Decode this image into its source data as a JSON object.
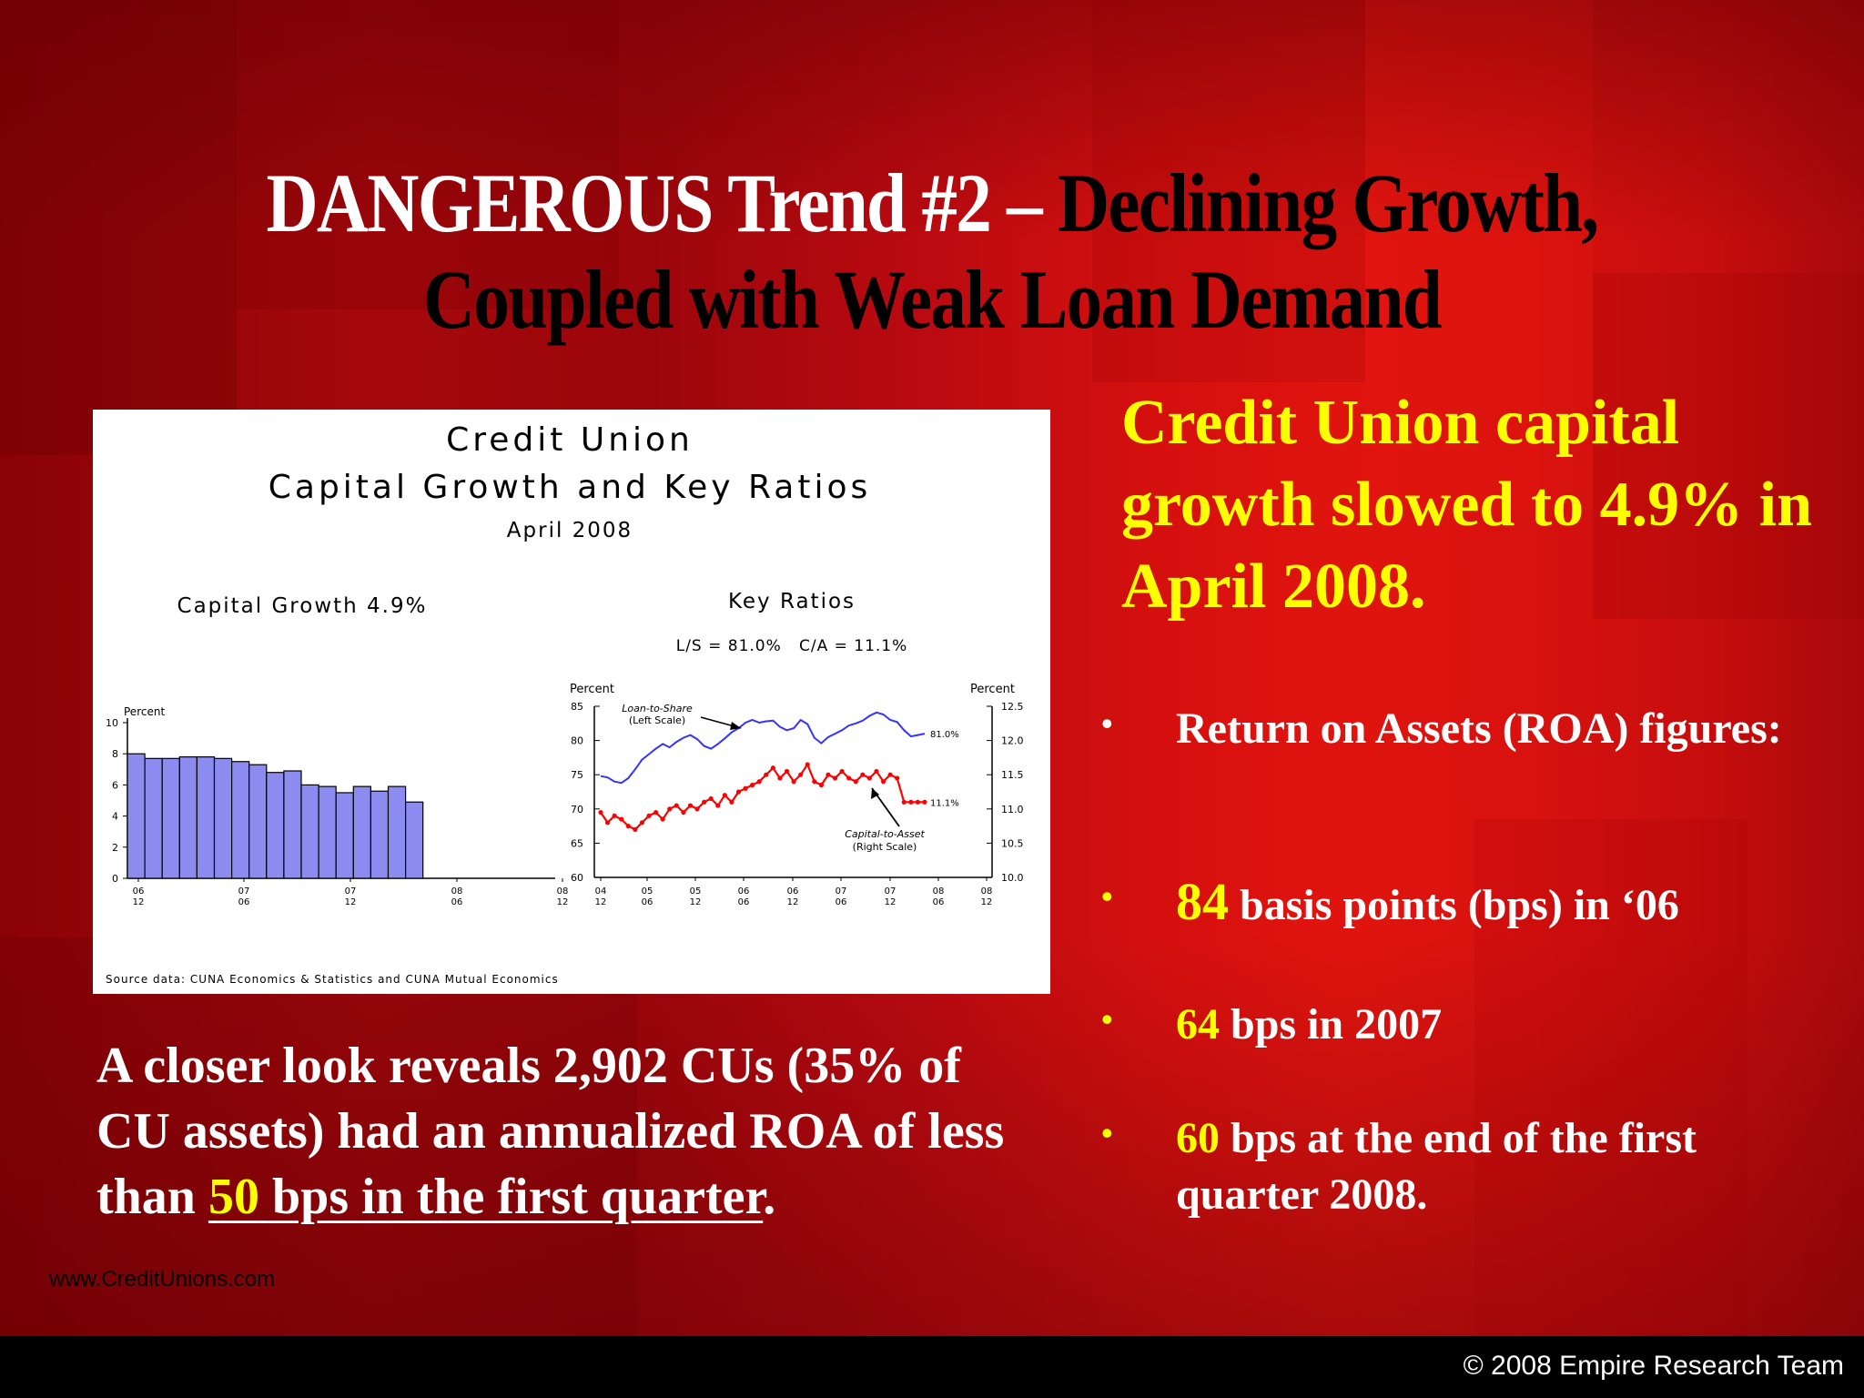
{
  "slide": {
    "title_part1": "DANGEROUS Trend #2 – ",
    "title_part2": "Declining Growth,",
    "title_line2": "Coupled with Weak Loan Demand",
    "headline": "Credit Union capital growth slowed to 4.9% in April 2008.",
    "bullets": [
      {
        "highlight": "",
        "text": "Return on Assets (ROA) figures:"
      },
      {
        "highlight": "84",
        "text": " basis points (bps) in ‘06"
      },
      {
        "highlight": "64",
        "text": " bps in 2007"
      },
      {
        "highlight": "60",
        "text": " bps at the end of the first quarter 2008."
      }
    ],
    "bullet_symbol": "•",
    "closer_text": "A closer look reveals 2,902 CUs (35% of CU assets) had an annualized ROA of less than ",
    "closer_highlight": "50",
    "closer_underlined": " bps in the first quarter",
    "closer_end": ".",
    "website": "www.CreditUnions.com",
    "copyright": "© 2008 Empire Research Team"
  },
  "colors": {
    "accent_yellow": "#ffff00",
    "bar_fill": "#8c8cf0",
    "loan_to_share_line": "#3333ff",
    "capital_to_asset_line": "#ff0000"
  },
  "chart_data": [
    {
      "type": "bar",
      "title": "Credit Union",
      "title_line2": "Capital Growth and Key Ratios",
      "subtitle": "April 2008",
      "panel_title": "Capital Growth 4.9%",
      "ylabel": "Percent",
      "ylim": [
        0,
        10
      ],
      "yticks": [
        0,
        2,
        4,
        6,
        8,
        10
      ],
      "xticks": [
        [
          "06",
          "12"
        ],
        [
          "07",
          "06"
        ],
        [
          "07",
          "12"
        ],
        [
          "08",
          "06"
        ],
        [
          "08",
          "12"
        ]
      ],
      "values": [
        8.0,
        7.7,
        7.7,
        7.8,
        7.8,
        7.7,
        7.5,
        7.3,
        6.8,
        6.9,
        6.0,
        5.9,
        5.5,
        5.9,
        5.6,
        5.9,
        4.9
      ]
    },
    {
      "type": "line",
      "panel_title": "Key Ratios",
      "panel_subtitle": "L/S = 81.0%   C/A = 11.1%",
      "ylabel_left": "Percent",
      "ylabel_right": "Percent",
      "ylim_left": [
        60,
        85
      ],
      "ylim_right": [
        10.0,
        12.5
      ],
      "yticks_left": [
        60,
        65,
        70,
        75,
        80,
        85
      ],
      "yticks_right": [
        "10.0",
        "10.5",
        "11.0",
        "11.5",
        "12.0",
        "12.5"
      ],
      "xticks": [
        [
          "04",
          "12"
        ],
        [
          "05",
          "06"
        ],
        [
          "05",
          "12"
        ],
        [
          "06",
          "06"
        ],
        [
          "06",
          "12"
        ],
        [
          "07",
          "06"
        ],
        [
          "07",
          "12"
        ],
        [
          "08",
          "06"
        ],
        [
          "08",
          "12"
        ]
      ],
      "series": [
        {
          "name": "Loan-to-Share",
          "name_note": "(Left Scale)",
          "end_label": "81.0%",
          "axis": "left",
          "values": [
            74.8,
            74.6,
            74.0,
            73.8,
            74.5,
            75.8,
            77.2,
            78.0,
            78.8,
            79.5,
            79.0,
            79.8,
            80.4,
            80.8,
            80.2,
            79.2,
            78.8,
            79.5,
            80.3,
            81.2,
            81.8,
            82.6,
            83.0,
            82.6,
            82.8,
            82.9,
            82.0,
            81.5,
            81.8,
            83.0,
            82.4,
            80.4,
            79.6,
            80.5,
            81.0,
            81.5,
            82.2,
            82.5,
            82.9,
            83.6,
            84.1,
            83.8,
            83.0,
            82.7,
            81.5,
            80.6,
            80.8,
            81.0
          ]
        },
        {
          "name": "Capital-to-Asset",
          "name_note": "(Right Scale)",
          "end_label": "11.1%",
          "axis": "right",
          "values": [
            10.95,
            10.8,
            10.9,
            10.85,
            10.75,
            10.7,
            10.8,
            10.9,
            10.95,
            10.85,
            11.0,
            11.05,
            10.95,
            11.05,
            11.0,
            11.1,
            11.15,
            11.05,
            11.2,
            11.1,
            11.25,
            11.3,
            11.35,
            11.4,
            11.5,
            11.6,
            11.45,
            11.55,
            11.4,
            11.5,
            11.65,
            11.4,
            11.35,
            11.5,
            11.45,
            11.55,
            11.45,
            11.4,
            11.5,
            11.45,
            11.55,
            11.4,
            11.5,
            11.45,
            11.1,
            11.1,
            11.1,
            11.1
          ]
        }
      ],
      "source": "Source data: CUNA Economics & Statistics and CUNA Mutual Economics"
    }
  ]
}
